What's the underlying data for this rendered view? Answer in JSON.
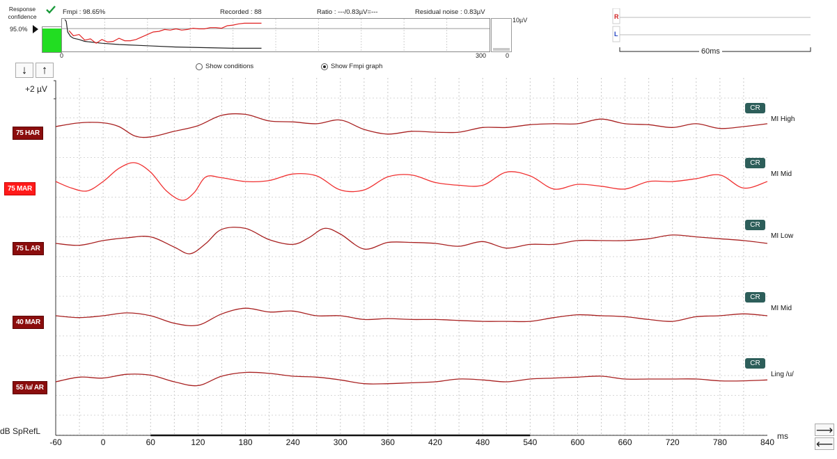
{
  "confidence": {
    "label": "Response confidence",
    "percent": "95.0%",
    "fill_fraction": 0.95,
    "check_color": "#1a9a3a",
    "fill_color": "#22dd22"
  },
  "header": {
    "fmpi": "Fmpi : 98.65%",
    "recorded": "Recorded : 88",
    "ratio": "Ratio : ---/0.83µV=---",
    "residual": "Residual noise : 0.83µV"
  },
  "fmpi_graph": {
    "x_start": "0",
    "x_end": "300",
    "x_max": 300,
    "red_line": [
      [
        5,
        3.2
      ],
      [
        8,
        2.4
      ],
      [
        12,
        2.6
      ],
      [
        16,
        1.7
      ],
      [
        20,
        1.9
      ],
      [
        24,
        1.2
      ],
      [
        28,
        1.8
      ],
      [
        32,
        1.4
      ],
      [
        36,
        1.5
      ],
      [
        40,
        2.0
      ],
      [
        44,
        1.6
      ],
      [
        48,
        1.6
      ],
      [
        52,
        1.8
      ],
      [
        56,
        2.2
      ],
      [
        60,
        2.6
      ],
      [
        64,
        3.0
      ],
      [
        68,
        3.1
      ],
      [
        72,
        3.4
      ],
      [
        76,
        3.3
      ],
      [
        80,
        3.5
      ],
      [
        84,
        3.3
      ],
      [
        88,
        3.4
      ],
      [
        92,
        3.6
      ],
      [
        96,
        3.5
      ],
      [
        100,
        3.5
      ],
      [
        104,
        3.7
      ],
      [
        108,
        3.7
      ],
      [
        112,
        3.6
      ],
      [
        116,
        4.0
      ],
      [
        120,
        4.1
      ],
      [
        124,
        4.3
      ],
      [
        128,
        4.4
      ],
      [
        132,
        4.4
      ],
      [
        136,
        4.4
      ],
      [
        140,
        4.4
      ]
    ],
    "black_line": [
      [
        2,
        5.0
      ],
      [
        3,
        4.7
      ],
      [
        4,
        3.0
      ],
      [
        6,
        2.3
      ],
      [
        8,
        2.0
      ],
      [
        12,
        1.8
      ],
      [
        16,
        1.5
      ],
      [
        20,
        1.4
      ],
      [
        28,
        1.2
      ],
      [
        40,
        1.0
      ],
      [
        60,
        0.8
      ],
      [
        80,
        0.6
      ],
      [
        100,
        0.5
      ],
      [
        120,
        0.4
      ],
      [
        140,
        0.4
      ]
    ],
    "y_max": 5
  },
  "noise_meter": {
    "top_label": "10µV",
    "bottom_label": "0",
    "fill_fraction": 0.08
  },
  "ear_panel": {
    "right_label": "R",
    "left_label": "L",
    "scale_label": "60ms",
    "right_color": "#d02020",
    "left_color": "#2040c0"
  },
  "controls": {
    "down_icon": "↓",
    "up_icon": "↑",
    "show_conditions": "Show conditions",
    "show_fmpi": "Show Fmpi graph",
    "scale": "+2 µV",
    "next_icon": "⟶",
    "prev_icon": "⟵"
  },
  "chart_data": {
    "type": "line",
    "xlabel": "ms",
    "ylabel": "dB SpRefL",
    "xlim": [
      -60,
      840
    ],
    "x_ticks": [
      -60,
      0,
      60,
      120,
      180,
      240,
      300,
      360,
      420,
      480,
      540,
      600,
      660,
      720,
      780,
      840
    ],
    "scale_bar_uv": 2,
    "window_start_ms": 60,
    "window_end_ms": 540,
    "series": [
      {
        "name": "75 HAR",
        "stimulus": "MI High",
        "badge": "CR",
        "selected": false,
        "x": [
          -60,
          -30,
          0,
          20,
          40,
          60,
          90,
          120,
          150,
          180,
          210,
          240,
          270,
          300,
          330,
          360,
          390,
          420,
          450,
          480,
          510,
          540,
          570,
          600,
          630,
          660,
          690,
          720,
          750,
          780,
          810,
          840
        ],
        "y": [
          0.0,
          0.4,
          0.4,
          0.0,
          -1.0,
          -1.1,
          -0.5,
          0.1,
          1.2,
          1.3,
          0.6,
          0.5,
          0.3,
          0.7,
          -0.3,
          -0.8,
          -0.5,
          -0.6,
          -0.6,
          -0.1,
          -0.1,
          0.2,
          0.3,
          0.3,
          0.8,
          0.3,
          0.2,
          -0.1,
          0.3,
          -0.2,
          0.0,
          0.3
        ]
      },
      {
        "name": "75 MAR",
        "stimulus": "MI Mid",
        "badge": "CR",
        "selected": true,
        "x": [
          -60,
          -40,
          -20,
          0,
          20,
          40,
          60,
          80,
          100,
          115,
          130,
          150,
          180,
          210,
          240,
          270,
          300,
          330,
          360,
          390,
          420,
          450,
          480,
          510,
          540,
          570,
          600,
          630,
          660,
          690,
          720,
          750,
          780,
          810,
          840
        ],
        "y": [
          0.0,
          -0.7,
          -1.0,
          0.0,
          1.4,
          2.0,
          1.0,
          -1.0,
          -2.0,
          -1.2,
          0.5,
          0.4,
          0.0,
          0.1,
          0.8,
          0.6,
          -0.9,
          -0.9,
          0.5,
          0.7,
          -0.1,
          -0.4,
          -0.4,
          1.0,
          0.6,
          -0.8,
          -0.3,
          -0.5,
          -0.8,
          0.0,
          0.0,
          0.3,
          0.7,
          -0.7,
          0.0
        ]
      },
      {
        "name": "75 L AR",
        "stimulus": "MI Low",
        "badge": "CR",
        "selected": false,
        "x": [
          -60,
          -30,
          0,
          30,
          60,
          90,
          110,
          130,
          150,
          180,
          210,
          240,
          260,
          280,
          300,
          330,
          360,
          390,
          420,
          450,
          480,
          510,
          540,
          570,
          600,
          630,
          660,
          690,
          720,
          750,
          780,
          810,
          840
        ],
        "y": [
          0.0,
          -0.2,
          0.3,
          0.6,
          0.7,
          -0.4,
          -1.1,
          0.0,
          1.5,
          1.6,
          0.4,
          -0.1,
          0.6,
          1.6,
          1.0,
          -0.6,
          0.1,
          0.1,
          0.0,
          -0.3,
          0.2,
          -0.5,
          -0.1,
          -0.1,
          0.3,
          0.3,
          0.3,
          0.5,
          0.9,
          0.7,
          0.5,
          0.3,
          0.0
        ]
      },
      {
        "name": "40 MAR",
        "stimulus": "MI Mid",
        "badge": "CR",
        "selected": false,
        "x": [
          -60,
          -30,
          0,
          30,
          60,
          90,
          120,
          150,
          180,
          210,
          240,
          270,
          300,
          330,
          360,
          390,
          420,
          450,
          480,
          510,
          540,
          570,
          600,
          630,
          660,
          690,
          720,
          750,
          780,
          810,
          840
        ],
        "y": [
          0.0,
          -0.2,
          0.0,
          0.3,
          0.0,
          -0.8,
          -1.0,
          0.2,
          0.8,
          0.4,
          0.5,
          0.0,
          0.0,
          -0.4,
          -0.3,
          -0.4,
          -0.4,
          -0.5,
          -0.6,
          -0.6,
          -0.6,
          -0.2,
          0.1,
          0.0,
          -0.1,
          -0.4,
          -0.6,
          -0.1,
          0.0,
          0.2,
          0.0
        ]
      },
      {
        "name": "55 /u/ AR",
        "stimulus": "Ling /u/",
        "badge": "CR",
        "selected": false,
        "x": [
          -60,
          -30,
          0,
          30,
          60,
          90,
          120,
          150,
          180,
          210,
          240,
          270,
          300,
          330,
          360,
          390,
          420,
          450,
          480,
          510,
          540,
          570,
          600,
          630,
          660,
          690,
          720,
          750,
          780,
          810,
          840
        ],
        "y": [
          0.0,
          0.5,
          0.4,
          0.8,
          0.7,
          0.0,
          -0.4,
          0.6,
          1.0,
          0.9,
          0.6,
          0.5,
          0.2,
          -0.2,
          -0.2,
          -0.1,
          0.0,
          0.3,
          0.2,
          0.0,
          0.3,
          0.4,
          0.5,
          0.6,
          0.3,
          0.3,
          0.3,
          0.3,
          0.1,
          0.1,
          0.2
        ]
      }
    ]
  }
}
